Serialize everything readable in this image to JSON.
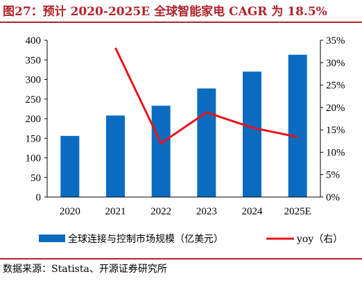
{
  "title": "图27：预计 2020-2025E 全球智能家电 CAGR 为 18.5%",
  "source": "数据来源：Statista、开源证券研究所",
  "colors": {
    "bar": "#0b6cbf",
    "line": "#e8131b",
    "title": "#b0232a"
  },
  "chart_data": {
    "type": "bar",
    "categories": [
      "2020",
      "2021",
      "2022",
      "2023",
      "2024",
      "2025E"
    ],
    "series": [
      {
        "name": "全球连接与控制市场规模（亿美元）",
        "type": "bar",
        "axis": "left",
        "values": [
          156,
          208,
          233,
          277,
          320,
          363
        ]
      },
      {
        "name": "yoy（右）",
        "type": "line",
        "axis": "right",
        "values": [
          null,
          33.3,
          12.0,
          18.9,
          15.5,
          13.4
        ]
      }
    ],
    "y_left": {
      "ylim": [
        0,
        400
      ],
      "ticks": [
        "0",
        "50",
        "100",
        "150",
        "200",
        "250",
        "300",
        "350",
        "400"
      ]
    },
    "y_right": {
      "ylim": [
        0,
        35
      ],
      "ticks": [
        "0%",
        "5%",
        "10%",
        "15%",
        "20%",
        "25%",
        "30%",
        "35%"
      ]
    },
    "legend": "bottom"
  }
}
